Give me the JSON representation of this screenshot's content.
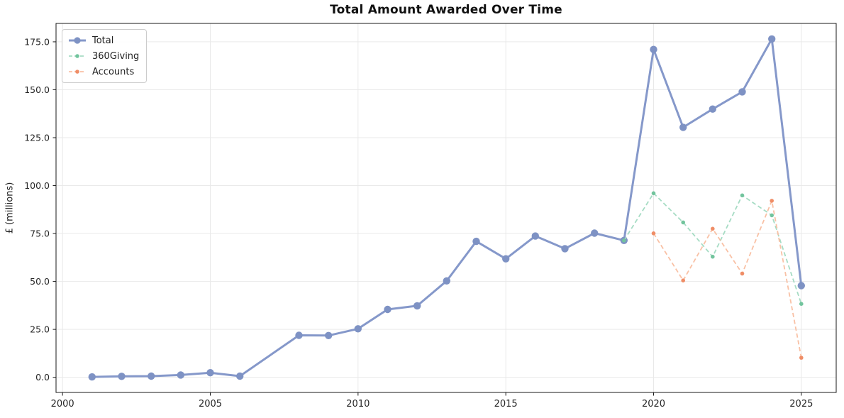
{
  "chart_data": {
    "type": "line",
    "title": "Total Amount Awarded Over Time",
    "xlabel": "",
    "ylabel": "£ (millions)",
    "grid": true,
    "legend_position": "upper left",
    "xlim": [
      1999.78,
      2026.18
    ],
    "ylim": [
      -7.9,
      184.6
    ],
    "x_tick_values": [
      2000,
      2005,
      2010,
      2015,
      2020,
      2025
    ],
    "x_tick_labels": [
      "2000",
      "2005",
      "2010",
      "2015",
      "2020",
      "2025"
    ],
    "y_tick_values": [
      0,
      25,
      50,
      75,
      100,
      125,
      150,
      175
    ],
    "y_tick_labels": [
      "0.0",
      "25.0",
      "50.0",
      "75.0",
      "100.0",
      "125.0",
      "150.0",
      "175.0"
    ],
    "series": [
      {
        "name": "Total",
        "style": "solid",
        "line_color": "#8598ca",
        "marker_color": "#7e92c4",
        "line_width": 3,
        "marker_radius": 5.2,
        "points": [
          [
            2001,
            0.2
          ],
          [
            2002,
            0.5
          ],
          [
            2003,
            0.6
          ],
          [
            2004,
            1.2
          ],
          [
            2005,
            2.4
          ],
          [
            2006,
            0.6
          ],
          [
            2008,
            21.9
          ],
          [
            2009,
            21.8
          ],
          [
            2010,
            25.3
          ],
          [
            2011,
            35.4
          ],
          [
            2012,
            37.3
          ],
          [
            2013,
            50.3
          ],
          [
            2014,
            70.9
          ],
          [
            2015,
            61.8
          ],
          [
            2016,
            73.7
          ],
          [
            2017,
            67.1
          ],
          [
            2018,
            75.2
          ],
          [
            2019,
            71.4
          ],
          [
            2020,
            171.0
          ],
          [
            2021,
            130.4
          ],
          [
            2022,
            139.9
          ],
          [
            2023,
            148.9
          ],
          [
            2024,
            176.5
          ],
          [
            2025,
            47.8
          ]
        ]
      },
      {
        "name": "360Giving",
        "style": "dashed",
        "line_color": "#a6dcc4",
        "marker_color": "#72c49d",
        "line_width": 1.8,
        "marker_radius": 2.8,
        "points": [
          [
            2019,
            71.4
          ],
          [
            2020,
            96.0
          ],
          [
            2021,
            80.8
          ],
          [
            2022,
            62.9
          ],
          [
            2023,
            94.9
          ],
          [
            2024,
            84.5
          ],
          [
            2025,
            38.3
          ]
        ]
      },
      {
        "name": "Accounts",
        "style": "dashed",
        "line_color": "#f9c1a5",
        "marker_color": "#ef8d66",
        "line_width": 1.8,
        "marker_radius": 2.8,
        "points": [
          [
            2020,
            75.1
          ],
          [
            2021,
            50.5
          ],
          [
            2022,
            77.5
          ],
          [
            2023,
            54.1
          ],
          [
            2024,
            92.1
          ],
          [
            2025,
            10.2
          ]
        ]
      }
    ],
    "style_colors": {
      "grid": "#e9e9e9",
      "spine": "#1a1a1a",
      "tick_text": "#262626"
    }
  }
}
